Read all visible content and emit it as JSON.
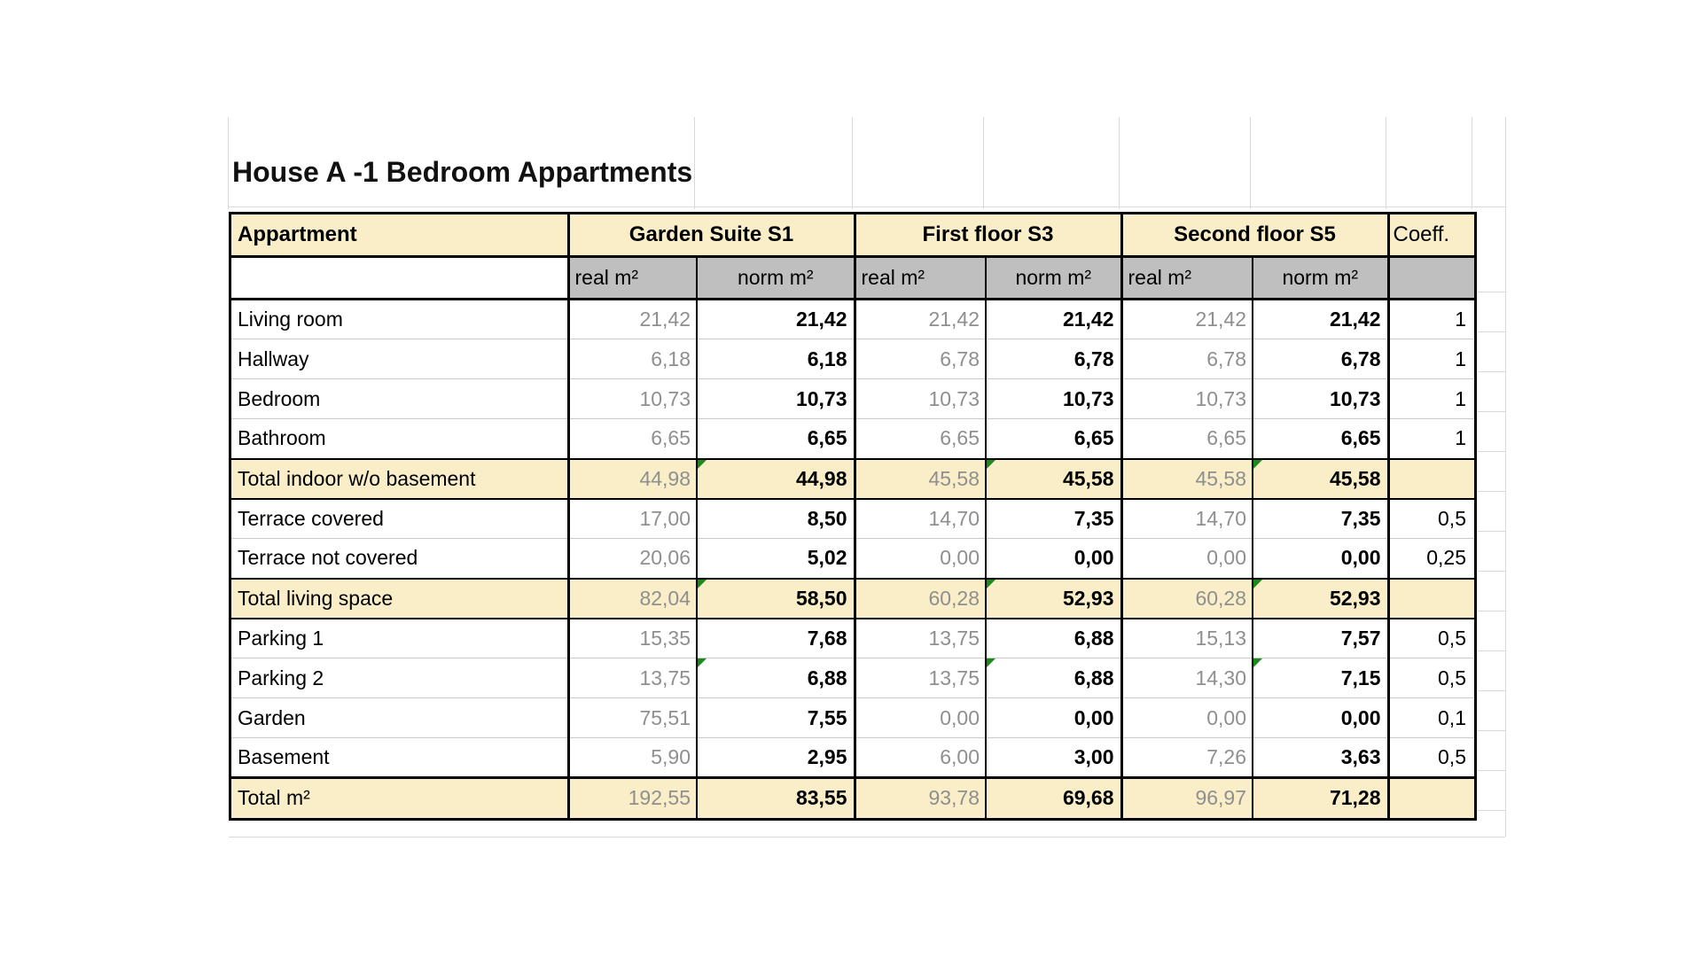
{
  "title": "House A -1 Bedroom Appartments",
  "header": {
    "row_label": "Appartment",
    "groups": [
      "Garden Suite S1",
      "First floor S3",
      "Second floor S5"
    ],
    "coeff": "Coeff.",
    "sub_real": "real m²",
    "sub_norm": "norm m²"
  },
  "suite_keys": [
    "garden-suite-s1",
    "first-floor-s3",
    "second-floor-s5"
  ],
  "rows": [
    {
      "label": "Living room",
      "suites": [
        [
          "21,42",
          "21,42"
        ],
        [
          "21,42",
          "21,42"
        ],
        [
          "21,42",
          "21,42"
        ]
      ],
      "coeff": "1"
    },
    {
      "label": "Hallway",
      "suites": [
        [
          "6,18",
          "6,18"
        ],
        [
          "6,78",
          "6,78"
        ],
        [
          "6,78",
          "6,78"
        ]
      ],
      "coeff": "1"
    },
    {
      "label": "Bedroom",
      "suites": [
        [
          "10,73",
          "10,73"
        ],
        [
          "10,73",
          "10,73"
        ],
        [
          "10,73",
          "10,73"
        ]
      ],
      "coeff": "1"
    },
    {
      "label": "Bathroom",
      "suites": [
        [
          "6,65",
          "6,65"
        ],
        [
          "6,65",
          "6,65"
        ],
        [
          "6,65",
          "6,65"
        ]
      ],
      "coeff": "1"
    },
    {
      "label": "Total indoor w/o basement",
      "suites": [
        [
          "44,98",
          "44,98"
        ],
        [
          "45,58",
          "45,58"
        ],
        [
          "45,58",
          "45,58"
        ]
      ],
      "coeff": "",
      "highlight": true,
      "flags": [
        true,
        true,
        true
      ]
    },
    {
      "label": "Terrace covered",
      "suites": [
        [
          "17,00",
          "8,50"
        ],
        [
          "14,70",
          "7,35"
        ],
        [
          "14,70",
          "7,35"
        ]
      ],
      "coeff": "0,5"
    },
    {
      "label": "Terrace not covered",
      "suites": [
        [
          "20,06",
          "5,02"
        ],
        [
          "0,00",
          "0,00"
        ],
        [
          "0,00",
          "0,00"
        ]
      ],
      "coeff": "0,25"
    },
    {
      "label": "Total living space",
      "suites": [
        [
          "82,04",
          "58,50"
        ],
        [
          "60,28",
          "52,93"
        ],
        [
          "60,28",
          "52,93"
        ]
      ],
      "coeff": "",
      "highlight": true,
      "flags": [
        true,
        true,
        true
      ]
    },
    {
      "label": "Parking 1",
      "suites": [
        [
          "15,35",
          "7,68"
        ],
        [
          "13,75",
          "6,88"
        ],
        [
          "15,13",
          "7,57"
        ]
      ],
      "coeff": "0,5"
    },
    {
      "label": "Parking 2",
      "suites": [
        [
          "13,75",
          "6,88"
        ],
        [
          "13,75",
          "6,88"
        ],
        [
          "14,30",
          "7,15"
        ]
      ],
      "coeff": "0,5",
      "flags": [
        true,
        true,
        true
      ]
    },
    {
      "label": "Garden",
      "suites": [
        [
          "75,51",
          "7,55"
        ],
        [
          "0,00",
          "0,00"
        ],
        [
          "0,00",
          "0,00"
        ]
      ],
      "coeff": "0,1"
    },
    {
      "label": "Basement",
      "suites": [
        [
          "5,90",
          "2,95"
        ],
        [
          "6,00",
          "3,00"
        ],
        [
          "7,26",
          "3,63"
        ]
      ],
      "coeff": "0,5"
    },
    {
      "label": "Total m²",
      "suites": [
        [
          "192,55",
          "83,55"
        ],
        [
          "93,78",
          "69,68"
        ],
        [
          "96,97",
          "71,28"
        ]
      ],
      "coeff": "",
      "highlight": true,
      "total": true,
      "coeff_gray": true
    }
  ],
  "colors": {
    "highlight_fill": "#FAEEC8",
    "subheader_fill": "#BFBFBF",
    "real_value_text": "#8F8F8F",
    "flag_green": "#1E8A1E",
    "border": "#000000"
  }
}
